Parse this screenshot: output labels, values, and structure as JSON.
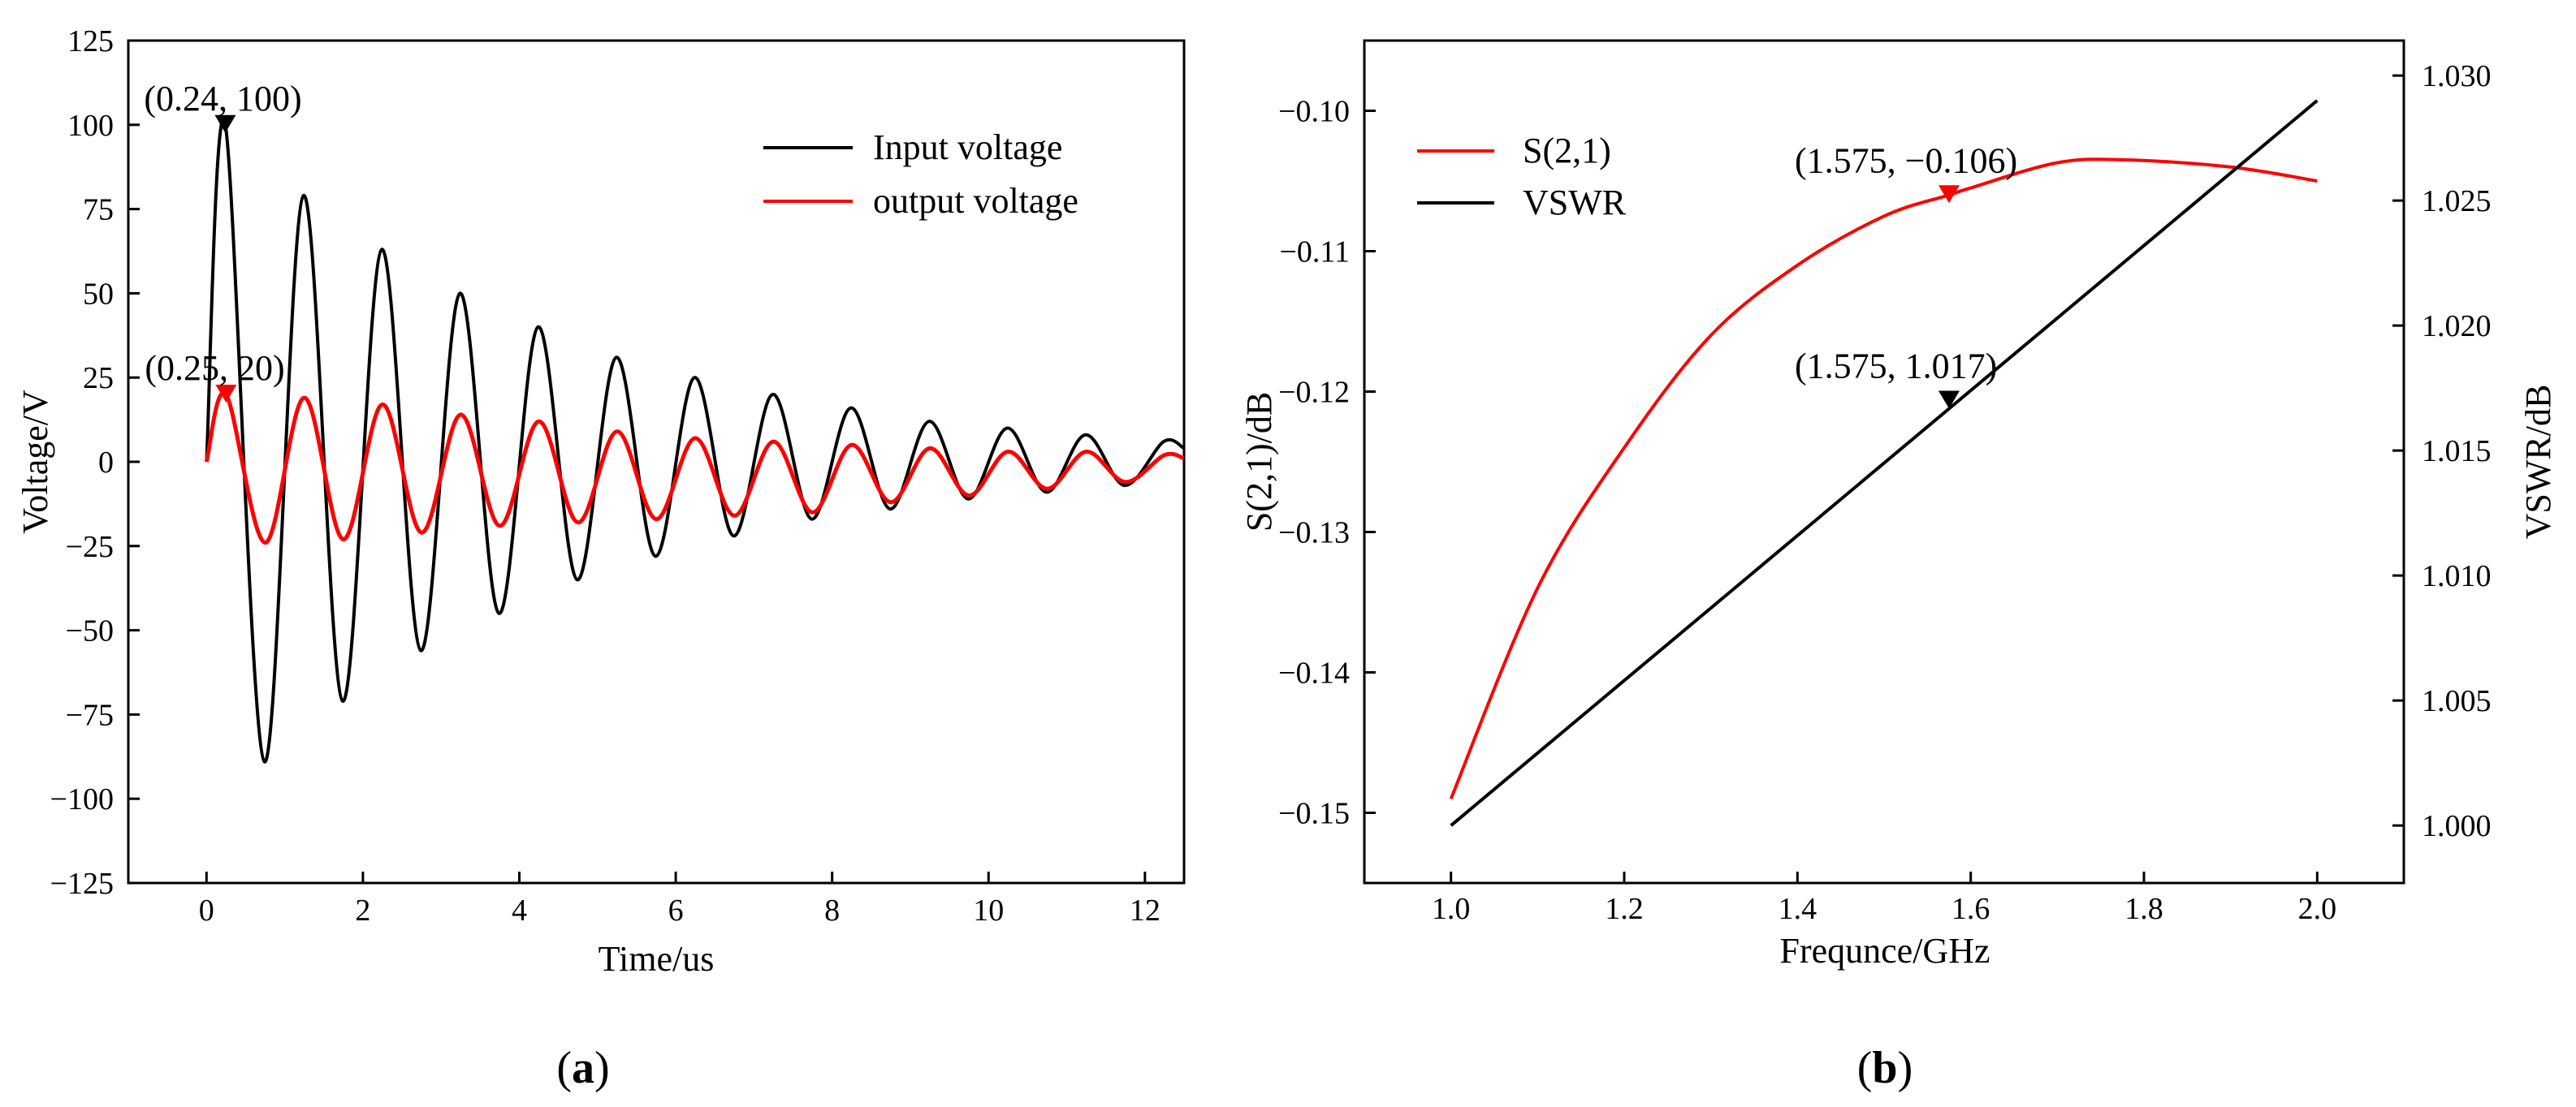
{
  "chart_data": [
    {
      "type": "line",
      "panel": "a",
      "panel_label": {
        "open": "(",
        "letter": "a",
        "close": ")"
      },
      "xlabel": "Time/us",
      "ylabel": "Voltage/V",
      "xlim": [
        -1,
        12.5
      ],
      "ylim": [
        -125,
        125
      ],
      "xticks": [
        0,
        2,
        4,
        6,
        8,
        10,
        12
      ],
      "yticks": [
        125,
        100,
        75,
        50,
        25,
        0,
        -25,
        -50,
        -75,
        -100,
        -125
      ],
      "legend_position": "top-right",
      "colors": {
        "input": "#000000",
        "output": "#ff0000"
      },
      "series": [
        {
          "name": "Input voltage",
          "color": "#000000",
          "x": [
            0,
            0.24,
            0.74,
            1.24,
            1.74,
            2.24,
            2.74,
            3.24,
            3.74,
            4.24,
            4.74,
            5.24,
            5.74,
            6.24,
            6.74,
            7.24,
            7.74,
            8.24,
            8.74,
            9.24,
            9.74,
            10.24,
            10.74,
            11.24,
            11.74,
            12.24,
            12.5
          ],
          "values": [
            0,
            100,
            -89,
            79,
            -71,
            63,
            -56,
            50,
            -45,
            40,
            -35,
            31,
            -28,
            25,
            -22,
            20,
            -17,
            16,
            -14,
            12,
            -11,
            10,
            -9,
            8,
            -7,
            6,
            4
          ]
        },
        {
          "name": "output voltage",
          "color": "#ff0000",
          "x": [
            0,
            0.25,
            0.75,
            1.25,
            1.75,
            2.25,
            2.75,
            3.25,
            3.75,
            4.25,
            4.75,
            5.25,
            5.75,
            6.25,
            6.75,
            7.25,
            7.75,
            8.25,
            8.75,
            9.25,
            9.75,
            10.25,
            10.75,
            11.25,
            11.75,
            12.25,
            12.5
          ],
          "values": [
            0,
            20,
            -24,
            19,
            -23,
            17,
            -21,
            14,
            -19,
            12,
            -18,
            9,
            -17,
            7,
            -16,
            6,
            -15,
            5,
            -12,
            4,
            -10,
            3,
            -8,
            3,
            -6,
            2,
            1
          ]
        }
      ],
      "annotations": [
        {
          "text": "(0.24,  100)",
          "x": 0.24,
          "y": 100,
          "color": "#000000"
        },
        {
          "text": "(0.25,  20)",
          "x": 0.25,
          "y": 20,
          "color": "#ff0000"
        }
      ]
    },
    {
      "type": "line",
      "panel": "b",
      "panel_label": {
        "open": "(",
        "letter": "b",
        "close": ")"
      },
      "xlabel": "Frequnce/GHz",
      "ylabel": "S(2,1)/dB",
      "y2label": "VSWR/dB",
      "xlim": [
        0.9,
        2.1
      ],
      "ylim": [
        -0.155,
        -0.095
      ],
      "y2lim": [
        0.9977,
        1.0314
      ],
      "xticks": [
        1.0,
        1.2,
        1.4,
        1.6,
        1.8,
        2.0
      ],
      "xtick_labels": [
        "1.0",
        "1.2",
        "1.4",
        "1.6",
        "1.8",
        "2.0"
      ],
      "yticks": [
        -0.1,
        -0.11,
        -0.12,
        -0.13,
        -0.14,
        -0.15
      ],
      "ytick_labels": [
        "−0.10",
        "−0.11",
        "−0.12",
        "−0.13",
        "−0.14",
        "−0.15"
      ],
      "y2ticks": [
        1.03,
        1.025,
        1.02,
        1.015,
        1.01,
        1.005,
        1.0
      ],
      "y2tick_labels": [
        "1.030",
        "1.025",
        "1.020",
        "1.015",
        "1.010",
        "1.005",
        "1.000"
      ],
      "legend_position": "top-left",
      "series": [
        {
          "name": "S(2,1)",
          "color": "#ff0000",
          "axis": "left",
          "x": [
            1.0,
            1.1,
            1.2,
            1.3,
            1.4,
            1.5,
            1.575,
            1.6,
            1.7,
            1.78,
            1.9,
            2.0
          ],
          "values": [
            -0.149,
            -0.134,
            -0.124,
            -0.116,
            -0.111,
            -0.1075,
            -0.106,
            -0.1055,
            -0.1037,
            -0.1035,
            -0.104,
            -0.105
          ]
        },
        {
          "name": "VSWR",
          "color": "#000000",
          "axis": "right",
          "x": [
            1.0,
            2.0
          ],
          "values": [
            1.0,
            1.029
          ]
        }
      ],
      "annotations": [
        {
          "text": "(1.575,  −0.106)",
          "x": 1.575,
          "y": -0.106,
          "axis": "left",
          "color": "#ff0000"
        },
        {
          "text": "(1.575,  1.017)",
          "x": 1.575,
          "y": 1.017,
          "axis": "right",
          "color": "#000000"
        }
      ]
    }
  ]
}
